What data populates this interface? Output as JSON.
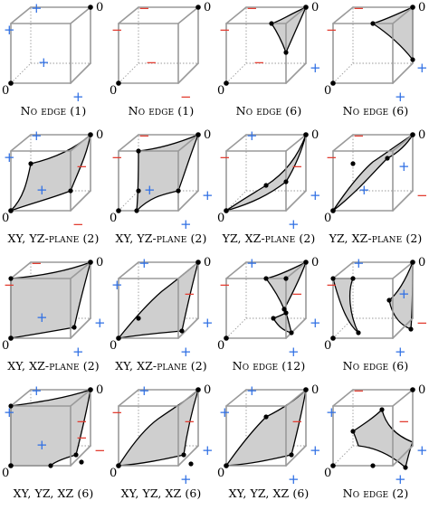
{
  "colors": {
    "plus": "#2f6fe4",
    "minus": "#e23a2e",
    "surface": "#cfcfcf",
    "cube": "#9a9a9a",
    "ink": "#000000"
  },
  "cells": [
    {
      "caption_main": "No edge",
      "caption_small": "",
      "caption_count": "(1)",
      "zero_labels": [
        "0",
        "0"
      ],
      "signs": [
        "+",
        "+",
        "+",
        "+"
      ]
    },
    {
      "caption_main": "No edge",
      "caption_small": "",
      "caption_count": "(1)",
      "zero_labels": [
        "0",
        "0"
      ],
      "signs": [
        "−",
        "−",
        "−",
        "−"
      ]
    },
    {
      "caption_main": "No edge",
      "caption_small": "",
      "caption_count": "(6)",
      "zero_labels": [
        "0",
        "0"
      ],
      "signs": [
        "−",
        "−",
        "−",
        "+"
      ]
    },
    {
      "caption_main": "No edge",
      "caption_small": "",
      "caption_count": "(6)",
      "zero_labels": [
        "0",
        "0"
      ],
      "signs": [
        "−",
        "−",
        "+",
        "+"
      ]
    },
    {
      "caption_main": "XY, YZ-",
      "caption_small": "plane",
      "caption_count": "(2)",
      "zero_labels": [
        "0",
        "0"
      ],
      "signs": [
        "+",
        "+",
        "−",
        "−",
        "+"
      ]
    },
    {
      "caption_main": "XY, YZ-",
      "caption_small": "plane",
      "caption_count": "(2)",
      "zero_labels": [
        "0",
        "0"
      ],
      "signs": [
        "−",
        "−",
        "+",
        "+",
        "+"
      ]
    },
    {
      "caption_main": "YZ, XZ-",
      "caption_small": "plane",
      "caption_count": "(2)",
      "zero_labels": [
        "0",
        "0"
      ],
      "signs": [
        "+",
        "−",
        "−",
        "+",
        "+"
      ]
    },
    {
      "caption_main": "YZ, XZ-",
      "caption_small": "plane",
      "caption_count": "(2)",
      "zero_labels": [
        "0",
        "0"
      ],
      "signs": [
        "−",
        "−",
        "+",
        "−",
        "+"
      ]
    },
    {
      "caption_main": "XY, XZ-",
      "caption_small": "plane",
      "caption_count": "(2)",
      "zero_labels": [
        "0",
        "0"
      ],
      "signs": [
        "−",
        "−",
        "+",
        "+",
        "+"
      ]
    },
    {
      "caption_main": "XY, XZ-",
      "caption_small": "plane",
      "caption_count": "(2)",
      "zero_labels": [
        "0",
        "0"
      ],
      "signs": [
        "+",
        "+",
        "−",
        "+",
        "+"
      ]
    },
    {
      "caption_main": "No edge",
      "caption_small": "",
      "caption_count": "(12)",
      "zero_labels": [
        "0",
        "0"
      ],
      "signs": [
        "+",
        "−",
        "−",
        "+",
        "+"
      ]
    },
    {
      "caption_main": "No edge",
      "caption_small": "",
      "caption_count": "(6)",
      "zero_labels": [
        "0",
        "0"
      ],
      "signs": [
        "+",
        "−",
        "+",
        "−",
        "+"
      ]
    },
    {
      "caption_main": "XY, YZ, XZ",
      "caption_small": "",
      "caption_count": "(6)",
      "zero_labels": [
        "0",
        "0"
      ],
      "signs": [
        "+",
        "+",
        "−",
        "−",
        "+",
        "−"
      ]
    },
    {
      "caption_main": "XY, YZ, XZ",
      "caption_small": "",
      "caption_count": "(6)",
      "zero_labels": [
        "0",
        "0"
      ],
      "signs": [
        "+",
        "−",
        "−",
        "+",
        "+"
      ]
    },
    {
      "caption_main": "XY, YZ, XZ",
      "caption_small": "",
      "caption_count": "(6)",
      "zero_labels": [
        "0",
        "0"
      ],
      "signs": [
        "+",
        "+",
        "−",
        "+",
        "+"
      ]
    },
    {
      "caption_main": "No edge",
      "caption_small": "",
      "caption_count": "(2)",
      "zero_labels": [
        "0",
        "0"
      ],
      "signs": [
        "−",
        "+",
        "−",
        "+",
        "+"
      ]
    }
  ]
}
